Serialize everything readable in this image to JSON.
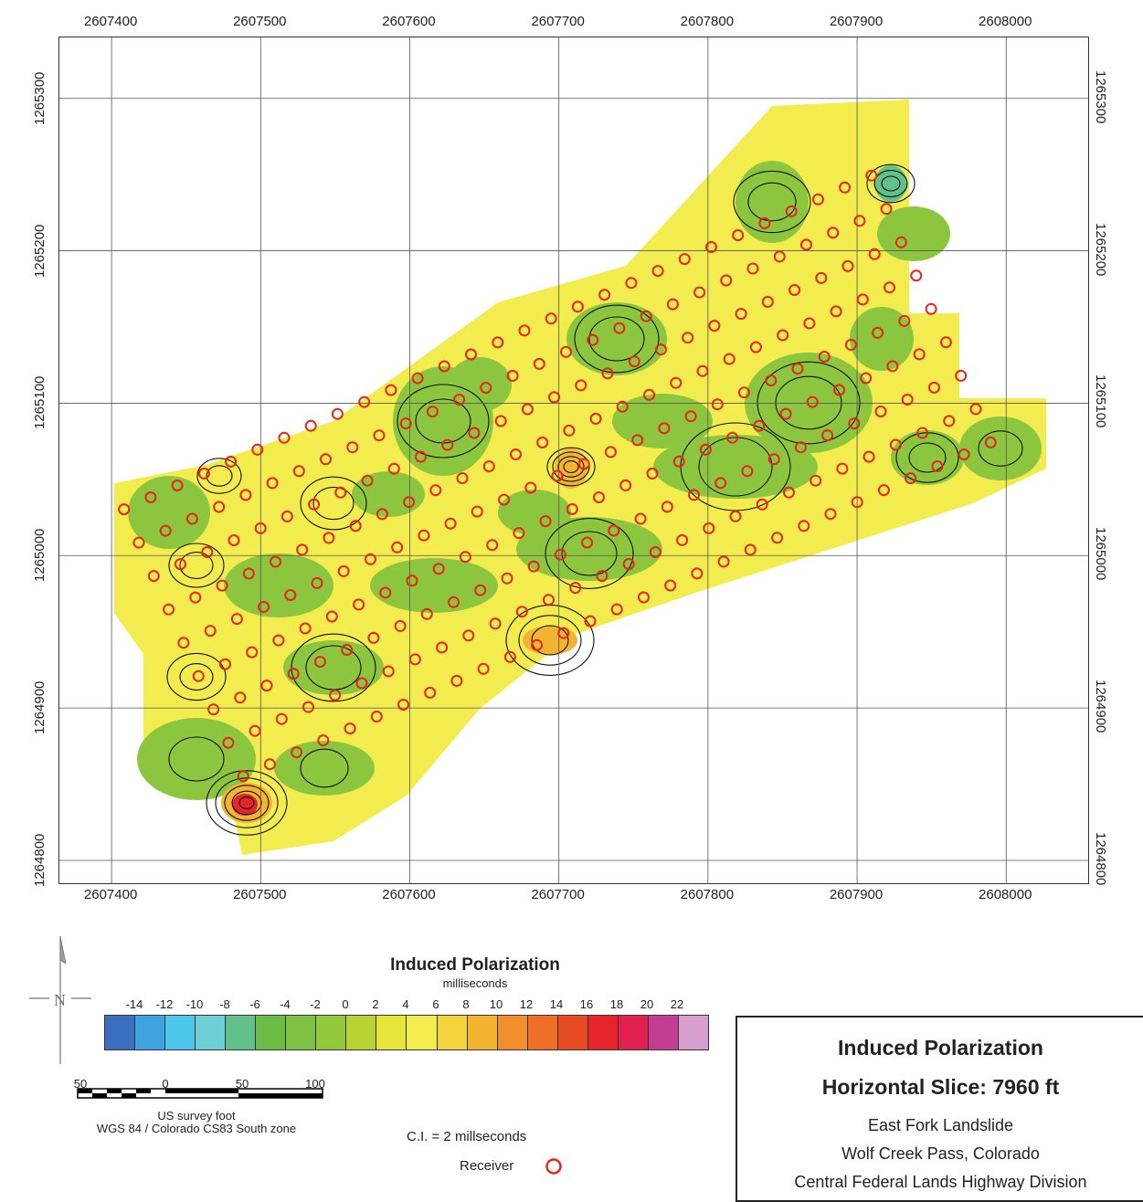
{
  "map": {
    "x_axis_labels": [
      "2607400",
      "2607500",
      "2607600",
      "2607700",
      "2607800",
      "2607900",
      "2608000"
    ],
    "x_axis_values": [
      2607400,
      2607500,
      2607600,
      2607700,
      2607800,
      2607900,
      2608000
    ],
    "y_axis_labels": [
      "1265300",
      "1265200",
      "1265100",
      "1265000",
      "1264900",
      "1264800"
    ],
    "y_axis_values": [
      1265300,
      1265200,
      1265100,
      1265000,
      1264900,
      1264800
    ],
    "x_range": [
      2607365,
      2608055
    ],
    "y_range": [
      1264785,
      1265340
    ],
    "grid": true,
    "receiver_color": "#e8241b",
    "contour_color": "#111111",
    "fill_color_dominant": "#f2ec4e",
    "fill_color_secondary": "#8cc63f"
  },
  "legend": {
    "title": "Induced Polarization",
    "units": "milliseconds",
    "tick_labels": [
      "-14",
      "-12",
      "-10",
      "-8",
      "-6",
      "-4",
      "-2",
      "0",
      "2",
      "4",
      "6",
      "8",
      "10",
      "12",
      "14",
      "16",
      "18",
      "20",
      "22"
    ],
    "colors": [
      "#3a6fbf",
      "#3fa4e0",
      "#4cc6ea",
      "#6ecfd6",
      "#62c08a",
      "#6bbd45",
      "#7dc242",
      "#94c83d",
      "#b9d234",
      "#e6e63a",
      "#f2ec4e",
      "#f5d33c",
      "#f3b431",
      "#f08f2c",
      "#ee6f28",
      "#e84a24",
      "#e5252b",
      "#e0204e",
      "#c23f95",
      "#d8a0cf"
    ]
  },
  "scalebar": {
    "labels": [
      "50",
      "0",
      "50",
      "100"
    ],
    "units": "US survey foot",
    "projection": "WGS 84 / Colorado CS83 South zone"
  },
  "contour_interval": "C.I. = 2 millseconds",
  "receiver_label": "Receiver",
  "title_box": {
    "title": "Induced Polarization",
    "slice": "Horizontal Slice: 7960 ft",
    "line1": "East Fork Landslide",
    "line2": "Wolf Creek Pass, Colorado",
    "line3": "Central Federal Lands Highway Division"
  },
  "north_arrow_letter": "N"
}
